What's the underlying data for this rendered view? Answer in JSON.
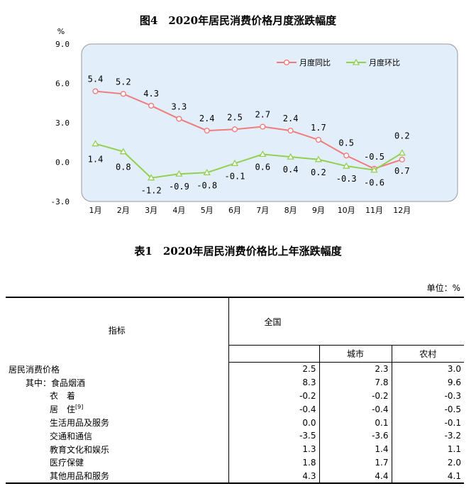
{
  "chart_title": "图4　2020年居民消费价格月度涨跌幅度",
  "chart_data": {
    "type": "line",
    "categories": [
      "1月",
      "2月",
      "3月",
      "4月",
      "5月",
      "6月",
      "7月",
      "8月",
      "9月",
      "10月",
      "11月",
      "12月"
    ],
    "series": [
      {
        "name": "月度同比",
        "values": [
          5.4,
          5.2,
          4.3,
          3.3,
          2.4,
          2.5,
          2.7,
          2.4,
          1.7,
          0.5,
          -0.5,
          0.2
        ],
        "color": "#f07c7c",
        "marker": "circle"
      },
      {
        "name": "月度环比",
        "values": [
          1.4,
          0.8,
          -1.2,
          -0.9,
          -0.8,
          -0.1,
          0.6,
          0.4,
          0.2,
          -0.3,
          -0.6,
          0.7
        ],
        "color": "#92d050",
        "marker": "triangle"
      }
    ],
    "ylabel": "%",
    "ylim": [
      -3.0,
      9.0
    ],
    "yticks": [
      "9.0",
      "6.0",
      "3.0",
      "0.0",
      "-3.0"
    ],
    "grid": false,
    "legend": "top-right",
    "plot_background": "#e2eefa"
  },
  "table": {
    "title": "表1　2020年居民消费价格比上年涨跌幅度",
    "unit": "单位：%",
    "col_indicator": "指标",
    "col_national": "全国",
    "col_urban": "城市",
    "col_rural": "农村",
    "rows": [
      {
        "name": "居民消费价格",
        "national": "2.5",
        "urban": "2.3",
        "rural": "3.0"
      },
      {
        "name": "其中：食品烟酒",
        "national": "8.3",
        "urban": "7.8",
        "rural": "9.6"
      },
      {
        "name": "衣　着",
        "national": "-0.2",
        "urban": "-0.2",
        "rural": "-0.3"
      },
      {
        "name": "居　住",
        "sup": "[9]",
        "national": "-0.4",
        "urban": "-0.4",
        "rural": "-0.5"
      },
      {
        "name": "生活用品及服务",
        "national": "0.0",
        "urban": "0.1",
        "rural": "-0.1"
      },
      {
        "name": "交通和通信",
        "national": "-3.5",
        "urban": "-3.6",
        "rural": "-3.2"
      },
      {
        "name": "教育文化和娱乐",
        "national": "1.3",
        "urban": "1.4",
        "rural": "1.1"
      },
      {
        "name": "医疗保健",
        "national": "1.8",
        "urban": "1.7",
        "rural": "2.0"
      },
      {
        "name": "其他用品和服务",
        "national": "4.3",
        "urban": "4.4",
        "rural": "4.1"
      }
    ]
  }
}
